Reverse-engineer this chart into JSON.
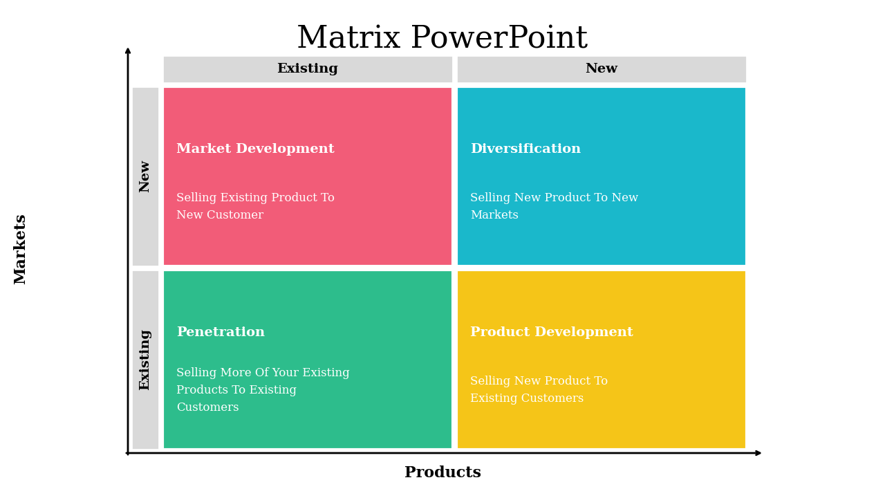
{
  "title": "Matrix PowerPoint",
  "title_fontsize": 32,
  "title_font": "serif",
  "xlabel": "Products",
  "ylabel": "Markets",
  "axis_label_fontsize": 16,
  "axis_label_font": "serif",
  "col_headers": [
    "Existing",
    "New"
  ],
  "row_headers": [
    "New",
    "Existing"
  ],
  "col_header_bg": "#d9d9d9",
  "row_header_bg": "#d9d9d9",
  "header_fontsize": 14,
  "header_font": "serif",
  "quadrants": [
    {
      "title": "Market Development",
      "body": "Selling Existing Product To\nNew Customer",
      "color": "#f25c78",
      "row": 1,
      "col": 0
    },
    {
      "title": "Diversification",
      "body": "Selling New Product To New\nMarkets",
      "color": "#1ab8cb",
      "row": 1,
      "col": 1
    },
    {
      "title": "Penetration",
      "body": "Selling More Of Your Existing\nProducts To Existing\nCustomers",
      "color": "#2dbd8c",
      "row": 0,
      "col": 0
    },
    {
      "title": "Product Development",
      "body": "Selling New Product To\nExisting Customers",
      "color": "#f5c518",
      "row": 0,
      "col": 1
    }
  ],
  "text_color": "#ffffff",
  "quadrant_title_fontsize": 14,
  "quadrant_body_fontsize": 12,
  "background_color": "#ffffff"
}
